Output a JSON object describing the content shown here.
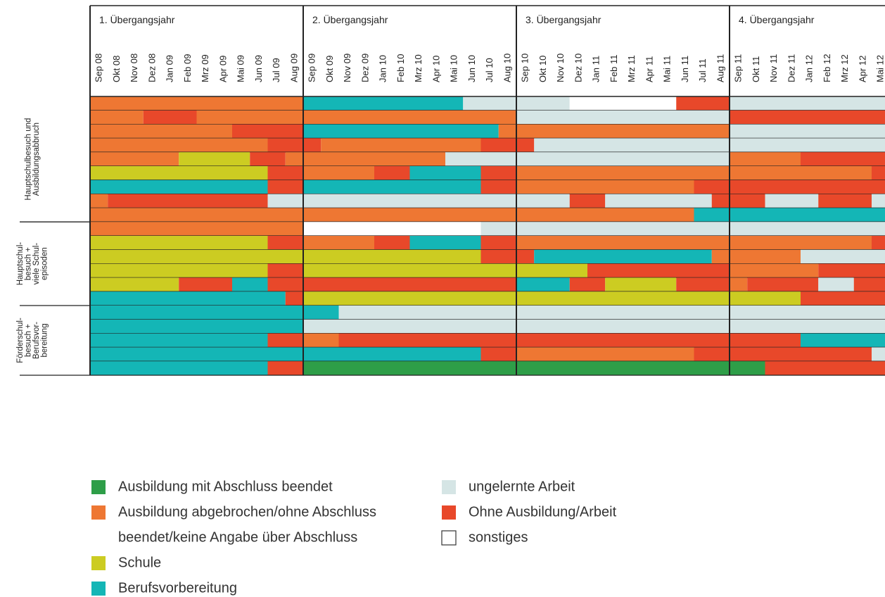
{
  "years": [
    {
      "title": "1. Übergangsjahr",
      "months": [
        "Sep 08",
        "Okt 08",
        "Nov 08",
        "Dez 08",
        "Jan 09",
        "Feb 09",
        "Mrz 09",
        "Apr 09",
        "Mai 09",
        "Jun 09",
        "Jul 09",
        "Aug 09"
      ]
    },
    {
      "title": "2. Übergangsjahr",
      "months": [
        "Sep 09",
        "Okt 09",
        "Nov 09",
        "Dez 09",
        "Jan 10",
        "Feb 10",
        "Mrz 10",
        "Apr 10",
        "Mai 10",
        "Jun 10",
        "Jul 10",
        "Aug 10"
      ]
    },
    {
      "title": "3. Übergangsjahr",
      "months": [
        "Sep 10",
        "Okt 10",
        "Nov 10",
        "Dez 10",
        "Jan 11",
        "Feb 11",
        "Mrz 11",
        "Apr 11",
        "Mai 11",
        "Jun 11",
        "Jul 11",
        "Aug 11"
      ]
    },
    {
      "title": "4. Übergangsjahr",
      "months": [
        "Sep 11",
        "Okt 11",
        "Nov 11",
        "Dez 11",
        "Jan 12",
        "Feb 12",
        "Mrz 12",
        "Apr 12",
        "Mai 12"
      ]
    }
  ],
  "legend": [
    {
      "label": [
        "Ausbildung mit Abschluss beendet"
      ],
      "color": "#2e9e48"
    },
    {
      "label": [
        "Ausbildung abgebrochen/ohne Abschluss",
        "beendet/keine Angabe über Abschluss"
      ],
      "color": "#ee7733"
    },
    {
      "label": [
        "Schule"
      ],
      "color": "#cccc22"
    },
    {
      "label": [
        "Berufsvorbereitung"
      ],
      "color": "#14b6b6"
    },
    {
      "label": [
        "ungelernte Arbeit"
      ],
      "color": "#d5e5e5"
    },
    {
      "label": [
        "Ohne Ausbildung/Arbeit"
      ],
      "color": "#e8482a"
    },
    {
      "label": [
        "sonstiges"
      ],
      "color": "#ffffff"
    }
  ],
  "groups": [
    {
      "label": [
        "Hauptschulbesuch und",
        "Ausbildungsabbruch"
      ],
      "rows": [
        [
          {
            "state": 1,
            "months": 12
          },
          {
            "state": 3,
            "months": 9
          },
          {
            "state": 4,
            "months": 6
          },
          {
            "state": 6,
            "months": 6
          },
          {
            "state": 5,
            "months": 3
          },
          {
            "state": 4,
            "months": 9
          }
        ],
        [
          {
            "state": 1,
            "months": 3
          },
          {
            "state": 5,
            "months": 3
          },
          {
            "state": 1,
            "months": 18
          },
          {
            "state": 4,
            "months": 12
          },
          {
            "state": 5,
            "months": 9
          }
        ],
        [
          {
            "state": 1,
            "months": 8
          },
          {
            "state": 5,
            "months": 4
          },
          {
            "state": 3,
            "months": 11
          },
          {
            "state": 1,
            "months": 13
          },
          {
            "state": 4,
            "months": 9
          }
        ],
        [
          {
            "state": 1,
            "months": 10
          },
          {
            "state": 5,
            "months": 3
          },
          {
            "state": 1,
            "months": 9
          },
          {
            "state": 5,
            "months": 3
          },
          {
            "state": 4,
            "months": 20
          }
        ],
        [
          {
            "state": 1,
            "months": 5
          },
          {
            "state": 2,
            "months": 4
          },
          {
            "state": 5,
            "months": 2
          },
          {
            "state": 1,
            "months": 9
          },
          {
            "state": 4,
            "months": 16
          },
          {
            "state": 1,
            "months": 4
          },
          {
            "state": 5,
            "months": 5
          }
        ],
        [
          {
            "state": 2,
            "months": 10
          },
          {
            "state": 5,
            "months": 2
          },
          {
            "state": 1,
            "months": 4
          },
          {
            "state": 5,
            "months": 2
          },
          {
            "state": 3,
            "months": 4
          },
          {
            "state": 5,
            "months": 2
          },
          {
            "state": 1,
            "months": 20
          },
          {
            "state": 5,
            "months": 1
          }
        ],
        [
          {
            "state": 3,
            "months": 10
          },
          {
            "state": 5,
            "months": 2
          },
          {
            "state": 3,
            "months": 10
          },
          {
            "state": 5,
            "months": 2
          },
          {
            "state": 1,
            "months": 10
          },
          {
            "state": 5,
            "months": 11
          }
        ],
        [
          {
            "state": 1,
            "months": 1
          },
          {
            "state": 5,
            "months": 9
          },
          {
            "state": 4,
            "months": 17
          },
          {
            "state": 5,
            "months": 2
          },
          {
            "state": 4,
            "months": 6
          },
          {
            "state": 5,
            "months": 3
          },
          {
            "state": 4,
            "months": 3
          },
          {
            "state": 5,
            "months": 3
          },
          {
            "state": 4,
            "months": 1
          }
        ],
        [
          {
            "state": 1,
            "months": 34
          },
          {
            "state": 3,
            "months": 11
          }
        ]
      ]
    },
    {
      "label": [
        "Hauptschul-",
        "besuch +",
        "viele Schul-",
        "episoden"
      ],
      "rows": [
        [
          {
            "state": 1,
            "months": 12
          },
          {
            "state": 6,
            "months": 10
          },
          {
            "state": 4,
            "months": 23
          }
        ],
        [
          {
            "state": 2,
            "months": 10
          },
          {
            "state": 5,
            "months": 2
          },
          {
            "state": 1,
            "months": 4
          },
          {
            "state": 5,
            "months": 2
          },
          {
            "state": 3,
            "months": 4
          },
          {
            "state": 5,
            "months": 2
          },
          {
            "state": 1,
            "months": 20
          },
          {
            "state": 5,
            "months": 1
          }
        ],
        [
          {
            "state": 2,
            "months": 22
          },
          {
            "state": 5,
            "months": 3
          },
          {
            "state": 3,
            "months": 10
          },
          {
            "state": 1,
            "months": 5
          },
          {
            "state": 4,
            "months": 5
          }
        ],
        [
          {
            "state": 2,
            "months": 10
          },
          {
            "state": 5,
            "months": 2
          },
          {
            "state": 2,
            "months": 16
          },
          {
            "state": 5,
            "months": 8
          },
          {
            "state": 1,
            "months": 5
          },
          {
            "state": 5,
            "months": 4
          }
        ],
        [
          {
            "state": 2,
            "months": 5
          },
          {
            "state": 5,
            "months": 3
          },
          {
            "state": 3,
            "months": 2
          },
          {
            "state": 5,
            "months": 14
          },
          {
            "state": 3,
            "months": 3
          },
          {
            "state": 5,
            "months": 2
          },
          {
            "state": 2,
            "months": 4
          },
          {
            "state": 5,
            "months": 3
          },
          {
            "state": 1,
            "months": 1
          },
          {
            "state": 5,
            "months": 4
          },
          {
            "state": 4,
            "months": 2
          },
          {
            "state": 5,
            "months": 2
          }
        ],
        [
          {
            "state": 3,
            "months": 11
          },
          {
            "state": 5,
            "months": 1
          },
          {
            "state": 2,
            "months": 28
          },
          {
            "state": 5,
            "months": 5
          }
        ]
      ]
    },
    {
      "label": [
        "Förderschul-",
        "besuch +",
        "Berufsvor-",
        "bereitung"
      ],
      "rows": [
        [
          {
            "state": 3,
            "months": 14
          },
          {
            "state": 4,
            "months": 31
          }
        ],
        [
          {
            "state": 3,
            "months": 12
          },
          {
            "state": 4,
            "months": 33
          }
        ],
        [
          {
            "state": 3,
            "months": 10
          },
          {
            "state": 5,
            "months": 2
          },
          {
            "state": 1,
            "months": 2
          },
          {
            "state": 5,
            "months": 26
          },
          {
            "state": 3,
            "months": 5
          }
        ],
        [
          {
            "state": 3,
            "months": 22
          },
          {
            "state": 5,
            "months": 2
          },
          {
            "state": 1,
            "months": 10
          },
          {
            "state": 5,
            "months": 10
          },
          {
            "state": 4,
            "months": 1
          }
        ],
        [
          {
            "state": 3,
            "months": 10
          },
          {
            "state": 5,
            "months": 2
          },
          {
            "state": 0,
            "months": 26
          },
          {
            "state": 5,
            "months": 7
          }
        ]
      ]
    }
  ]
}
